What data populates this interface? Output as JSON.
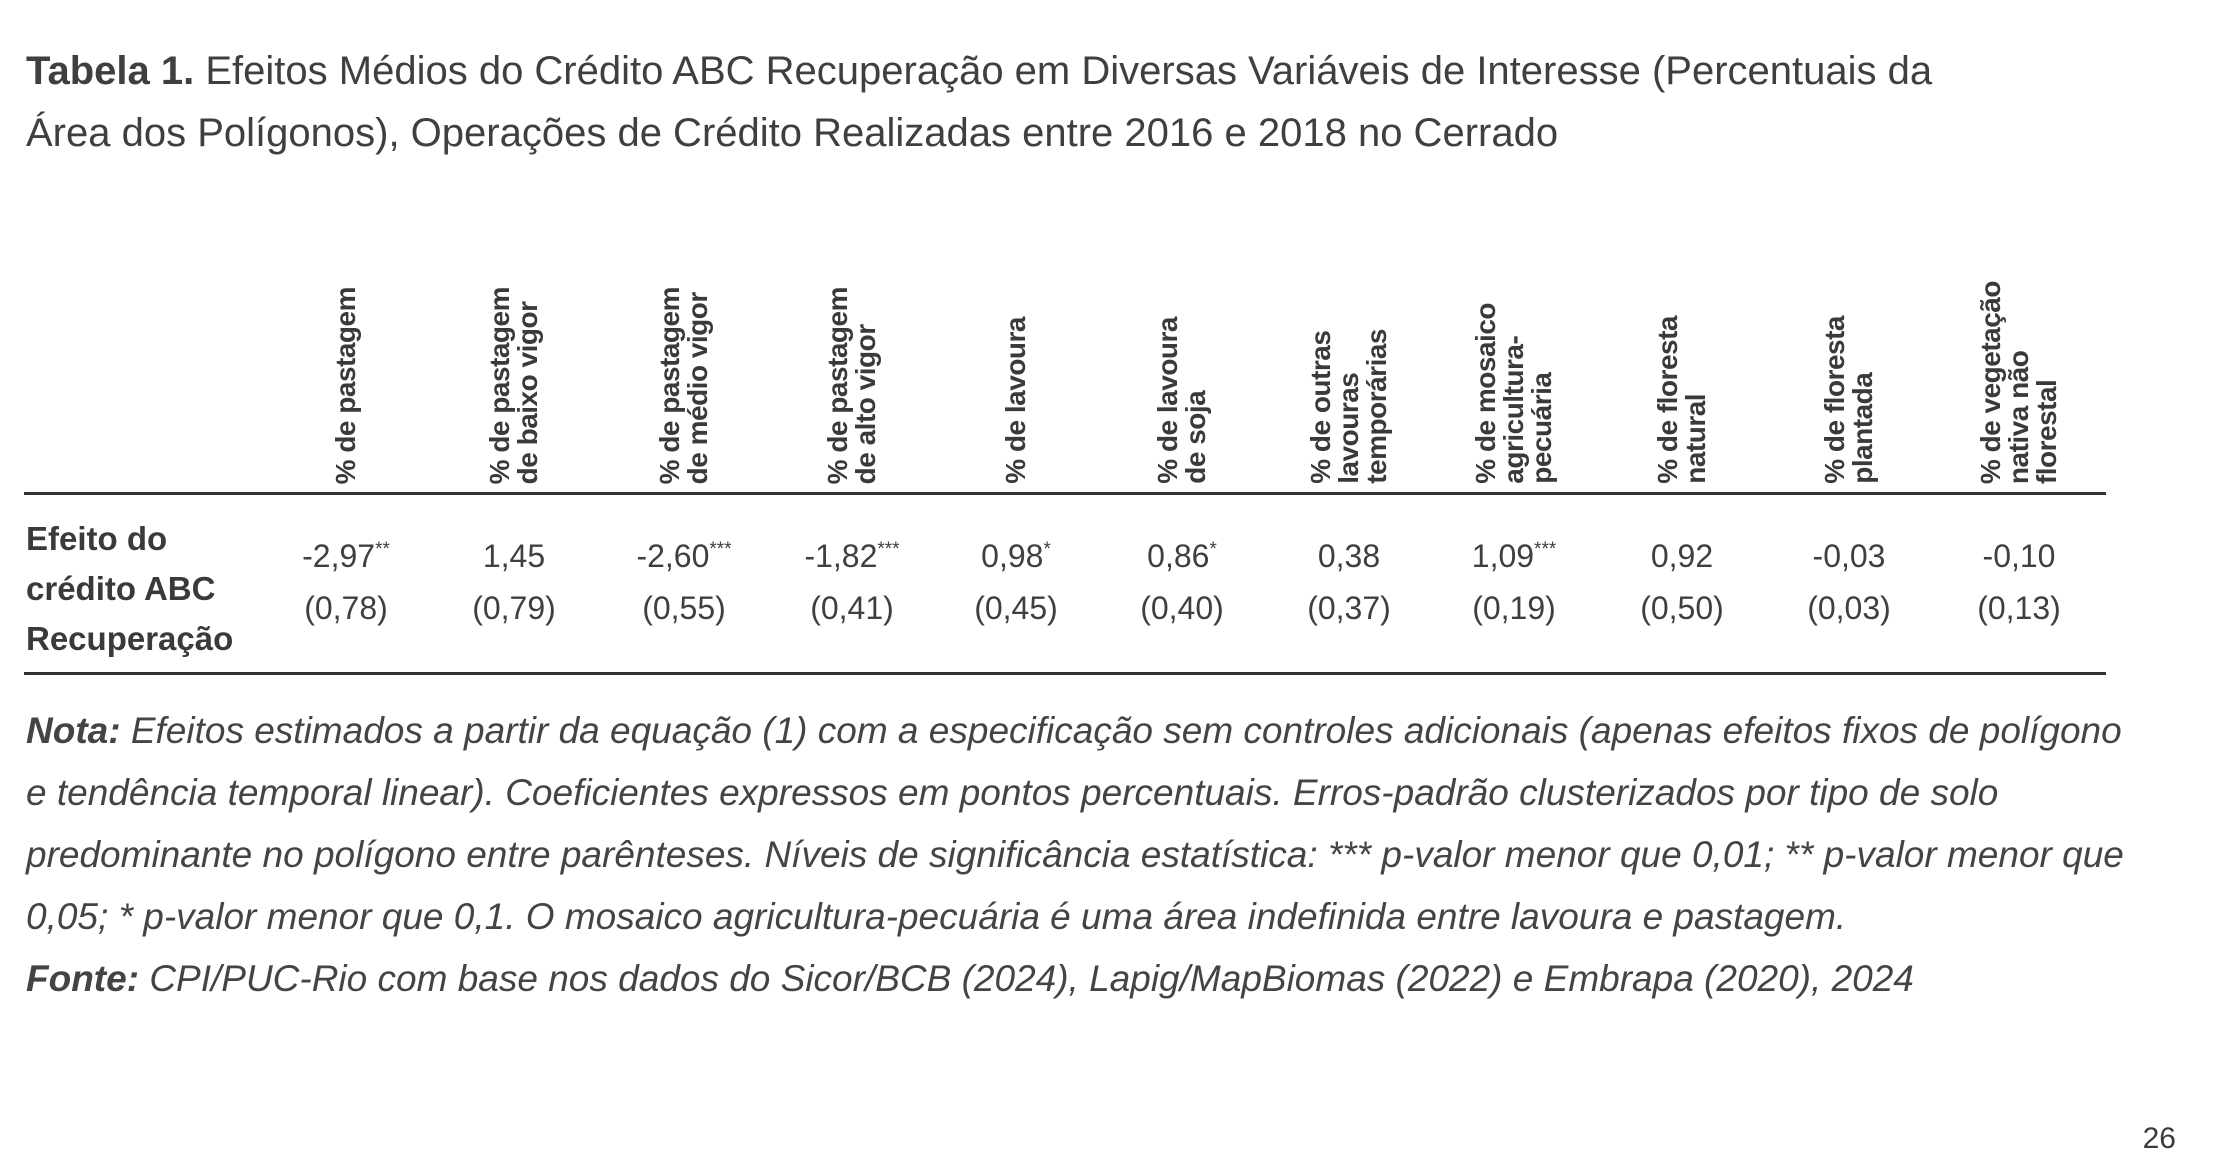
{
  "title": {
    "lead": "Tabela 1.",
    "line1": "Efeitos Médios do Crédito ABC Recuperação em Diversas Variáveis de Interesse (Percentuais da",
    "line2": "Área dos Polígonos), Operações de Crédito Realizadas entre 2016 e 2018 no Cerrado"
  },
  "table": {
    "columns": [
      "% de pastagem",
      "% de pastagem\nde baixo vigor",
      "% de pastagem\nde médio vigor",
      "% de pastagem\nde alto vigor",
      "% de lavoura",
      "% de lavoura\nde soja",
      "% de outras\nlavouras\ntemporárias",
      "% de mosaico\nagricultura-\npecuária",
      "% de floresta\nnatural",
      "% de floresta\nplantada",
      "% de vegetação\nnativa não\nflorestal"
    ],
    "row_label": [
      "Efeito do",
      "crédito ABC",
      "Recuperação"
    ],
    "cells": [
      {
        "coef": "-2,97",
        "stars": "**",
        "se": "(0,78)"
      },
      {
        "coef": "1,45",
        "stars": "",
        "se": "(0,79)"
      },
      {
        "coef": "-2,60",
        "stars": "***",
        "se": "(0,55)"
      },
      {
        "coef": "-1,82",
        "stars": "***",
        "se": "(0,41)"
      },
      {
        "coef": "0,98",
        "stars": "*",
        "se": "(0,45)"
      },
      {
        "coef": "0,86",
        "stars": "*",
        "se": "(0,40)"
      },
      {
        "coef": "0,38",
        "stars": "",
        "se": "(0,37)"
      },
      {
        "coef": "1,09",
        "stars": "***",
        "se": "(0,19)"
      },
      {
        "coef": "0,92",
        "stars": "",
        "se": "(0,50)"
      },
      {
        "coef": "-0,03",
        "stars": "",
        "se": "(0,03)"
      },
      {
        "coef": "-0,10",
        "stars": "",
        "se": "(0,13)"
      }
    ]
  },
  "notes": {
    "nota_label": "Nota:",
    "nota_text": "Efeitos estimados a partir da equação (1) com a especificação sem controles adicionais (apenas efeitos fixos de polígono e tendência temporal linear). Coeficientes expressos em pontos percentuais. Erros-padrão clusterizados por tipo de solo predominante no polígono entre parênteses. Níveis de significância estatística: *** p-valor menor que 0,01; ** p-valor menor que 0,05; * p-valor menor que 0,1. O mosaico agricultura-pecuária é uma área indefinida entre lavoura e pastagem.",
    "fonte_label": "Fonte:",
    "fonte_text": "CPI/PUC-Rio com base nos dados do Sicor/BCB (2024), Lapig/MapBiomas (2022) e Embrapa (2020), 2024"
  },
  "page_number": "26"
}
